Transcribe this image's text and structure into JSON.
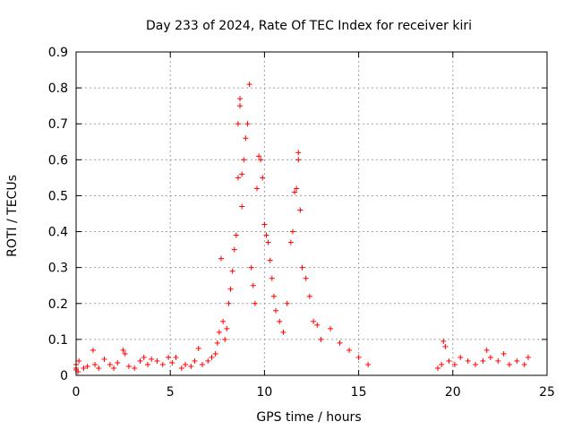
{
  "chart_data": {
    "type": "scatter",
    "title": "Day 233 of 2024, Rate Of TEC Index for receiver kiri",
    "xlabel": "GPS time / hours",
    "ylabel": "ROTI / TECUs",
    "xlim": [
      0,
      25
    ],
    "ylim": [
      0,
      0.9
    ],
    "xticks": [
      0,
      5,
      10,
      15,
      20,
      25
    ],
    "xtick_labels": [
      "0",
      "5",
      "10",
      "15",
      "20",
      "25"
    ],
    "yticks": [
      0,
      0.1,
      0.2,
      0.3,
      0.4,
      0.5,
      0.6,
      0.7,
      0.8,
      0.9
    ],
    "ytick_labels": [
      "0",
      "0.1",
      "0.2",
      "0.3",
      "0.4",
      "0.5",
      "0.6",
      "0.7",
      "0.8",
      "0.9"
    ],
    "grid": true,
    "marker": "+",
    "series": [
      {
        "name": "ROTI",
        "color": "#ff0000",
        "points": [
          [
            0.0,
            0.02
          ],
          [
            0.0,
            0.03
          ],
          [
            0.0,
            0.015
          ],
          [
            0.1,
            0.01
          ],
          [
            0.15,
            0.04
          ],
          [
            0.4,
            0.02
          ],
          [
            0.6,
            0.025
          ],
          [
            0.9,
            0.07
          ],
          [
            1.0,
            0.03
          ],
          [
            1.2,
            0.02
          ],
          [
            1.5,
            0.045
          ],
          [
            1.8,
            0.03
          ],
          [
            2.0,
            0.02
          ],
          [
            2.2,
            0.035
          ],
          [
            2.5,
            0.07
          ],
          [
            2.6,
            0.06
          ],
          [
            2.8,
            0.025
          ],
          [
            3.1,
            0.02
          ],
          [
            3.4,
            0.04
          ],
          [
            3.6,
            0.05
          ],
          [
            3.8,
            0.03
          ],
          [
            4.0,
            0.045
          ],
          [
            4.3,
            0.04
          ],
          [
            4.6,
            0.03
          ],
          [
            4.9,
            0.05
          ],
          [
            5.1,
            0.035
          ],
          [
            5.3,
            0.05
          ],
          [
            5.6,
            0.02
          ],
          [
            5.8,
            0.03
          ],
          [
            6.1,
            0.025
          ],
          [
            6.3,
            0.04
          ],
          [
            6.5,
            0.075
          ],
          [
            6.7,
            0.03
          ],
          [
            7.0,
            0.04
          ],
          [
            7.2,
            0.05
          ],
          [
            7.4,
            0.06
          ],
          [
            7.5,
            0.09
          ],
          [
            7.6,
            0.12
          ],
          [
            7.7,
            0.325
          ],
          [
            7.8,
            0.15
          ],
          [
            7.9,
            0.1
          ],
          [
            8.0,
            0.13
          ],
          [
            8.1,
            0.2
          ],
          [
            8.2,
            0.24
          ],
          [
            8.3,
            0.29
          ],
          [
            8.4,
            0.35
          ],
          [
            8.5,
            0.39
          ],
          [
            8.6,
            0.55
          ],
          [
            8.6,
            0.7
          ],
          [
            8.7,
            0.75
          ],
          [
            8.7,
            0.77
          ],
          [
            8.8,
            0.56
          ],
          [
            8.8,
            0.47
          ],
          [
            8.9,
            0.6
          ],
          [
            9.0,
            0.66
          ],
          [
            9.1,
            0.7
          ],
          [
            9.2,
            0.81
          ],
          [
            9.3,
            0.3
          ],
          [
            9.4,
            0.25
          ],
          [
            9.5,
            0.2
          ],
          [
            9.6,
            0.52
          ],
          [
            9.7,
            0.61
          ],
          [
            9.8,
            0.6
          ],
          [
            9.9,
            0.55
          ],
          [
            10.0,
            0.42
          ],
          [
            10.1,
            0.39
          ],
          [
            10.2,
            0.37
          ],
          [
            10.3,
            0.32
          ],
          [
            10.4,
            0.27
          ],
          [
            10.5,
            0.22
          ],
          [
            10.6,
            0.18
          ],
          [
            10.8,
            0.15
          ],
          [
            11.0,
            0.12
          ],
          [
            11.2,
            0.2
          ],
          [
            11.4,
            0.37
          ],
          [
            11.5,
            0.4
          ],
          [
            11.6,
            0.51
          ],
          [
            11.7,
            0.52
          ],
          [
            11.8,
            0.6
          ],
          [
            11.8,
            0.62
          ],
          [
            11.9,
            0.46
          ],
          [
            12.0,
            0.3
          ],
          [
            12.2,
            0.27
          ],
          [
            12.4,
            0.22
          ],
          [
            12.6,
            0.15
          ],
          [
            12.8,
            0.14
          ],
          [
            13.0,
            0.1
          ],
          [
            13.5,
            0.13
          ],
          [
            14.0,
            0.09
          ],
          [
            14.5,
            0.07
          ],
          [
            15.0,
            0.05
          ],
          [
            15.5,
            0.03
          ],
          [
            19.2,
            0.02
          ],
          [
            19.4,
            0.03
          ],
          [
            19.5,
            0.095
          ],
          [
            19.6,
            0.08
          ],
          [
            19.8,
            0.04
          ],
          [
            20.1,
            0.03
          ],
          [
            20.4,
            0.05
          ],
          [
            20.8,
            0.04
          ],
          [
            21.2,
            0.03
          ],
          [
            21.6,
            0.04
          ],
          [
            21.8,
            0.07
          ],
          [
            22.0,
            0.05
          ],
          [
            22.4,
            0.04
          ],
          [
            22.7,
            0.06
          ],
          [
            23.0,
            0.03
          ],
          [
            23.4,
            0.04
          ],
          [
            23.8,
            0.03
          ],
          [
            24.0,
            0.05
          ]
        ]
      }
    ]
  }
}
